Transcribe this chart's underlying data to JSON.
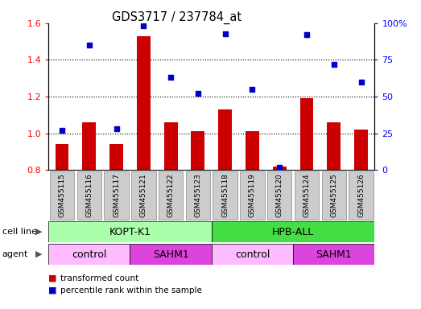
{
  "title": "GDS3717 / 237784_at",
  "samples": [
    "GSM455115",
    "GSM455116",
    "GSM455117",
    "GSM455121",
    "GSM455122",
    "GSM455123",
    "GSM455118",
    "GSM455119",
    "GSM455120",
    "GSM455124",
    "GSM455125",
    "GSM455126"
  ],
  "transformed_count": [
    0.94,
    1.06,
    0.94,
    1.53,
    1.06,
    1.01,
    1.13,
    1.01,
    0.82,
    1.19,
    1.06,
    1.02
  ],
  "percentile_rank": [
    27,
    85,
    28,
    98,
    63,
    52,
    93,
    55,
    2,
    92,
    72,
    60
  ],
  "bar_color": "#cc0000",
  "dot_color": "#0000cc",
  "ylim_left": [
    0.8,
    1.6
  ],
  "ylim_right": [
    0,
    100
  ],
  "yticks_left": [
    0.8,
    1.0,
    1.2,
    1.4,
    1.6
  ],
  "yticks_right": [
    0,
    25,
    50,
    75,
    100
  ],
  "cell_line_groups": [
    {
      "label": "KOPT-K1",
      "start": 0,
      "end": 6,
      "color": "#aaffaa"
    },
    {
      "label": "HPB-ALL",
      "start": 6,
      "end": 12,
      "color": "#44dd44"
    }
  ],
  "agent_groups": [
    {
      "label": "control",
      "start": 0,
      "end": 3,
      "color": "#ffbbff"
    },
    {
      "label": "SAHM1",
      "start": 3,
      "end": 6,
      "color": "#dd44dd"
    },
    {
      "label": "control",
      "start": 6,
      "end": 9,
      "color": "#ffbbff"
    },
    {
      "label": "SAHM1",
      "start": 9,
      "end": 12,
      "color": "#dd44dd"
    }
  ],
  "legend_items": [
    {
      "label": "transformed count",
      "color": "#cc0000"
    },
    {
      "label": "percentile rank within the sample",
      "color": "#0000cc"
    }
  ],
  "grid_yticks": [
    1.0,
    1.2,
    1.4
  ],
  "xtick_bg_color": "#cccccc",
  "xtick_border_color": "#888888",
  "fig_bg": "#ffffff",
  "cell_line_label": "cell line",
  "agent_label": "agent",
  "right_tick_labels": [
    "0",
    "25",
    "50",
    "75",
    "100%"
  ]
}
